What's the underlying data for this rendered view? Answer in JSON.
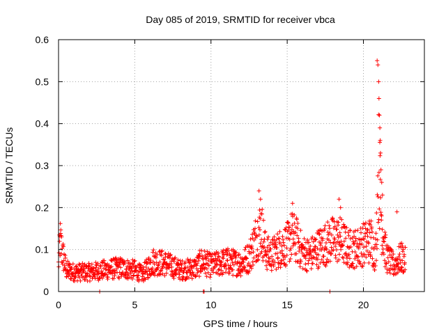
{
  "chart_data": {
    "type": "scatter",
    "title": "Day 085 of 2019, SRMTID for receiver vbca",
    "xlabel": "GPS time / hours",
    "ylabel": "SRMTID / TECUs",
    "xlim": [
      0,
      24
    ],
    "ylim": [
      0,
      0.6
    ],
    "xticks": [
      "0",
      "5",
      "10",
      "15",
      "20"
    ],
    "yticks": [
      "0",
      "0.1",
      "0.2",
      "0.3",
      "0.4",
      "0.5",
      "0.6"
    ],
    "grid": true,
    "marker": "+",
    "color": "#ff0000",
    "series": [
      {
        "name": "vbca",
        "x_range": [
          0,
          22.75
        ],
        "profile": [
          [
            0.0,
            0.06
          ],
          [
            0.1,
            0.12
          ],
          [
            0.25,
            0.09
          ],
          [
            0.5,
            0.05
          ],
          [
            1.0,
            0.045
          ],
          [
            2.0,
            0.045
          ],
          [
            3.0,
            0.05
          ],
          [
            4.0,
            0.055
          ],
          [
            5.0,
            0.05
          ],
          [
            5.5,
            0.04
          ],
          [
            6.2,
            0.07
          ],
          [
            7.0,
            0.065
          ],
          [
            8.0,
            0.05
          ],
          [
            9.0,
            0.055
          ],
          [
            9.4,
            0.07
          ],
          [
            10.0,
            0.06
          ],
          [
            11.0,
            0.07
          ],
          [
            12.0,
            0.065
          ],
          [
            12.5,
            0.08
          ],
          [
            13.0,
            0.13
          ],
          [
            13.3,
            0.15
          ],
          [
            13.6,
            0.09
          ],
          [
            14.0,
            0.085
          ],
          [
            14.5,
            0.1
          ],
          [
            15.0,
            0.11
          ],
          [
            15.3,
            0.13
          ],
          [
            15.6,
            0.12
          ],
          [
            16.0,
            0.09
          ],
          [
            16.5,
            0.085
          ],
          [
            17.0,
            0.1
          ],
          [
            17.5,
            0.11
          ],
          [
            18.0,
            0.12
          ],
          [
            18.5,
            0.12
          ],
          [
            19.0,
            0.1
          ],
          [
            19.5,
            0.1
          ],
          [
            20.0,
            0.11
          ],
          [
            20.5,
            0.12
          ],
          [
            20.8,
            0.08
          ],
          [
            21.0,
            0.3
          ],
          [
            21.2,
            0.16
          ],
          [
            21.5,
            0.08
          ],
          [
            22.0,
            0.06
          ],
          [
            22.5,
            0.08
          ],
          [
            22.75,
            0.07
          ]
        ],
        "spikes": [
          {
            "x": 13.15,
            "y": 0.24
          },
          {
            "x": 13.25,
            "y": 0.22
          },
          {
            "x": 15.35,
            "y": 0.21
          },
          {
            "x": 18.4,
            "y": 0.22
          },
          {
            "x": 18.5,
            "y": 0.2
          },
          {
            "x": 20.9,
            "y": 0.55
          },
          {
            "x": 20.95,
            "y": 0.54
          },
          {
            "x": 21.0,
            "y": 0.5
          },
          {
            "x": 21.02,
            "y": 0.46
          },
          {
            "x": 21.05,
            "y": 0.42
          },
          {
            "x": 21.08,
            "y": 0.39
          },
          {
            "x": 21.1,
            "y": 0.36
          },
          {
            "x": 21.12,
            "y": 0.33
          },
          {
            "x": 21.15,
            "y": 0.29
          },
          {
            "x": 21.2,
            "y": 0.26
          },
          {
            "x": 21.25,
            "y": 0.23
          },
          {
            "x": 22.2,
            "y": 0.19
          }
        ],
        "zero_points": [
          {
            "x": 2.7,
            "y": 0.0
          },
          {
            "x": 9.5,
            "y": 0.0
          },
          {
            "x": 9.55,
            "y": 0.0
          },
          {
            "x": 17.8,
            "y": 0.0
          }
        ]
      }
    ]
  }
}
